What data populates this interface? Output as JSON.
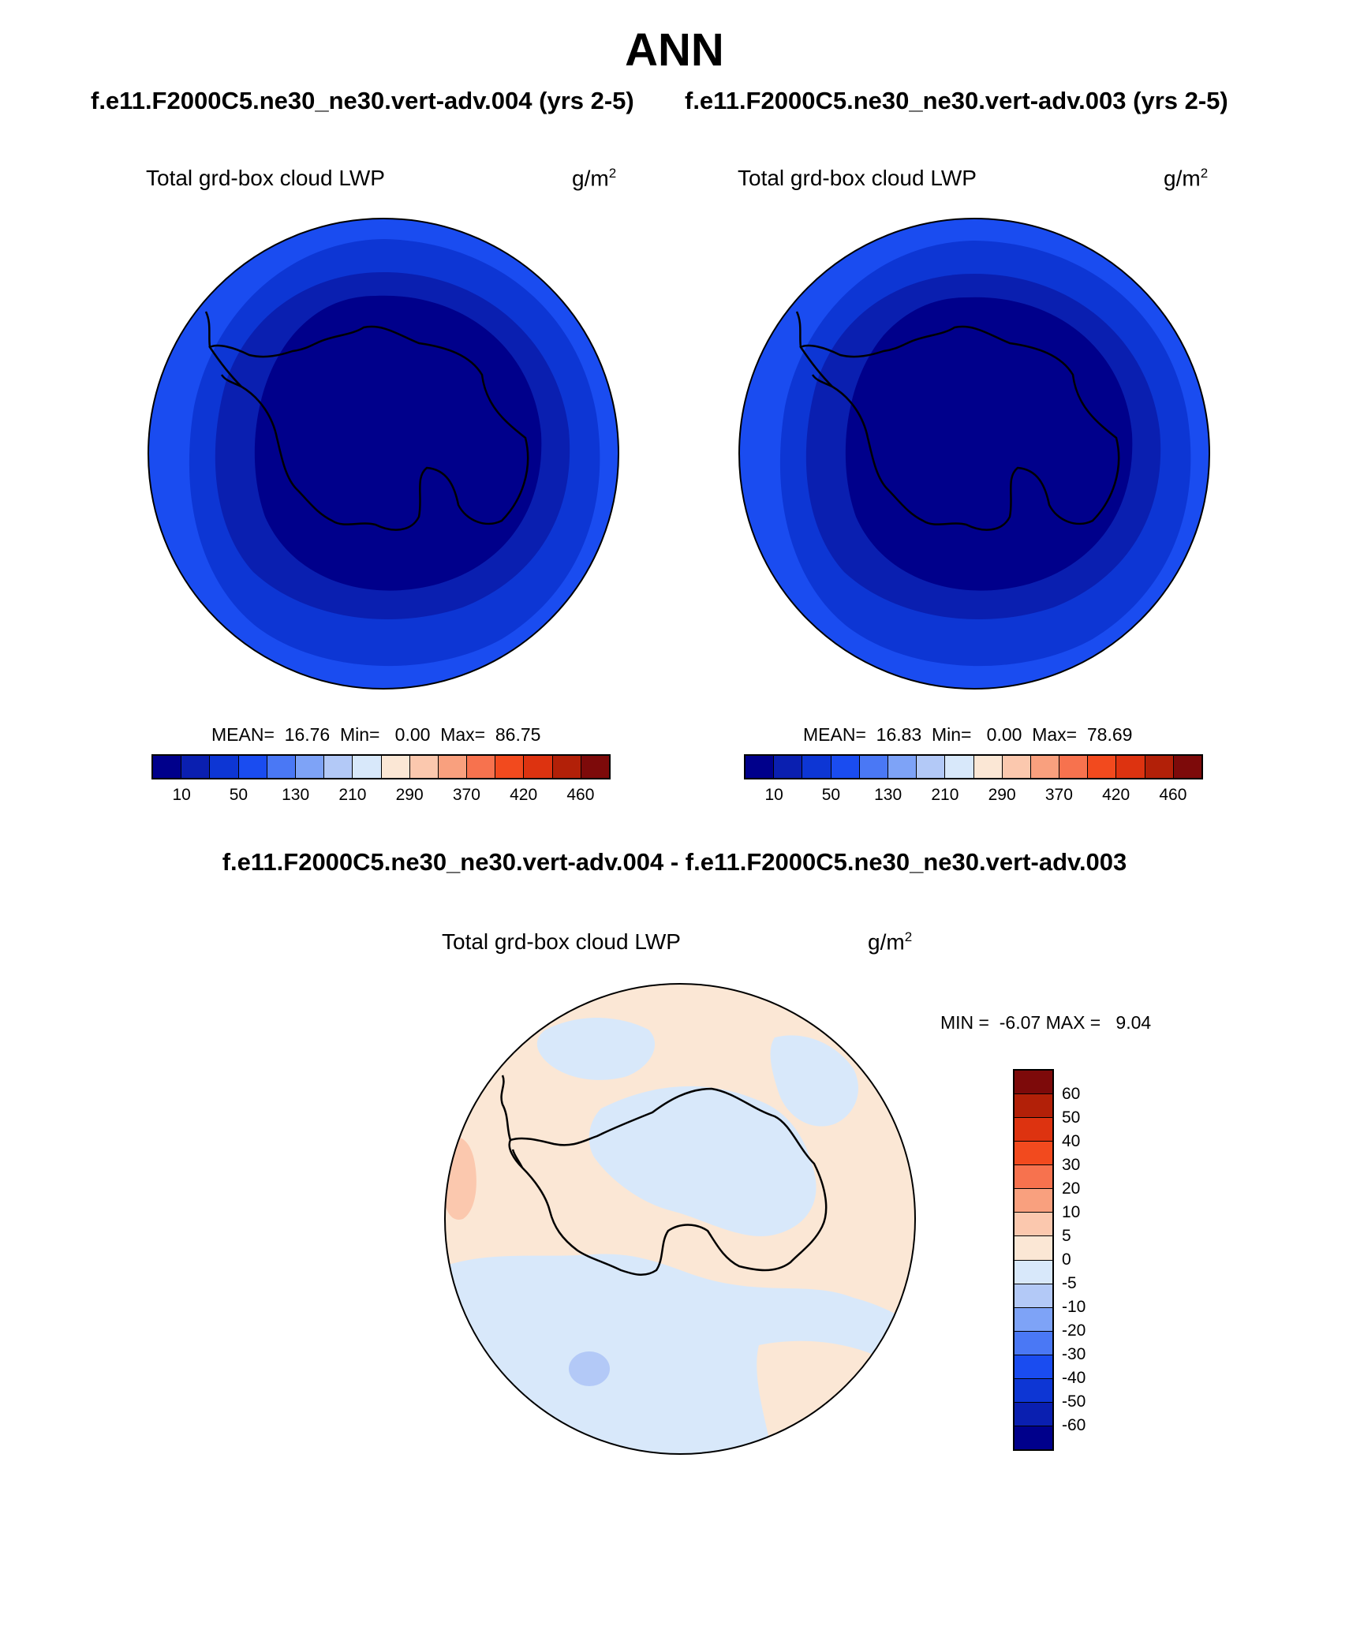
{
  "figure": {
    "title": "ANN",
    "case_title_left": "f.e11.F2000C5.ne30_ne30.vert-adv.004 (yrs 2-5)",
    "case_title_right": "f.e11.F2000C5.ne30_ne30.vert-adv.003 (yrs 2-5)",
    "diff_title": "f.e11.F2000C5.ne30_ne30.vert-adv.004 - f.e11.F2000C5.ne30_ne30.vert-adv.003"
  },
  "panels": {
    "left": {
      "variable": "Total grd-box cloud LWP",
      "units_base": "g/m",
      "units_exp": "2",
      "stats": "MEAN=  16.76  Min=   0.00  Max=  86.75"
    },
    "right": {
      "variable": "Total grd-box cloud LWP",
      "units_base": "g/m",
      "units_exp": "2",
      "stats": "MEAN=  16.83  Min=   0.00  Max=  78.69"
    },
    "diff": {
      "variable": "Total grd-box cloud LWP",
      "units_base": "g/m",
      "units_exp": "2",
      "stats": "MIN =  -6.07 MAX =   9.04"
    }
  },
  "colorbars": {
    "abs": {
      "colors": [
        "#00008b",
        "#0a1fb0",
        "#0d36d4",
        "#1a4cf0",
        "#4a78f5",
        "#7ea3f7",
        "#b3c9f7",
        "#d8e8fa",
        "#fbe7d5",
        "#fbc8ae",
        "#f9a07e",
        "#f7724e",
        "#f24a1e",
        "#dd3310",
        "#b22008",
        "#7d0a0a"
      ],
      "ticks": [
        "10",
        "50",
        "130",
        "210",
        "290",
        "370",
        "420",
        "460"
      ]
    },
    "diff": {
      "colors_top_to_bottom": [
        "#7d0a0a",
        "#b22008",
        "#dd3310",
        "#f24a1e",
        "#f7724e",
        "#f9a07e",
        "#fbc8ae",
        "#fbe7d5",
        "#d8e8fa",
        "#b3c9f7",
        "#7ea3f7",
        "#4a78f5",
        "#1a4cf0",
        "#0d36d4",
        "#0a1fb0",
        "#00008b"
      ],
      "ticks_top_to_bottom": [
        "60",
        "50",
        "40",
        "30",
        "20",
        "10",
        "5",
        "0",
        "-5",
        "-10",
        "-20",
        "-30",
        "-40",
        "-50",
        "-60"
      ]
    }
  },
  "colors": {
    "ocean_far": "#1a4cf0",
    "ocean_mid": "#0d36d4",
    "ocean_near": "#0a1fb0",
    "ice": "#00008b",
    "diff_neutral_pos": "#fbe7d5",
    "diff_neutral_neg": "#d8e8fa",
    "diff_light_pos": "#fbc8ae",
    "diff_light_neg": "#b3c9f7"
  }
}
